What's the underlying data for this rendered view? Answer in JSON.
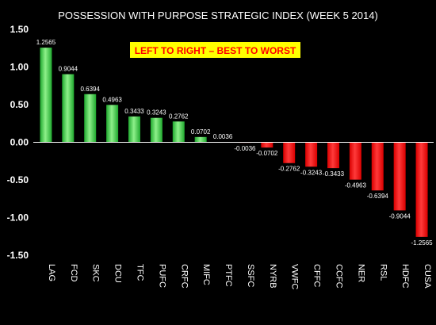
{
  "chart_data": {
    "type": "bar",
    "title": "POSSESSION WITH PURPOSE STRATEGIC INDEX (WEEK 5 2014)",
    "annotation": "LEFT TO RIGHT – BEST TO WORST",
    "xlabel": "",
    "ylabel": "",
    "ylim": [
      -1.5,
      1.5
    ],
    "yticks": [
      "1.50",
      "1.00",
      "0.50",
      "0.00",
      "-0.50",
      "-1.00",
      "-1.50"
    ],
    "categories": [
      "LAG",
      "FCD",
      "SKC",
      "DCU",
      "TFC",
      "PUFC",
      "CRFC",
      "MIFC",
      "PTFC",
      "SSFC",
      "NYRB",
      "VWFC",
      "CFFC",
      "CCFC",
      "NER",
      "RSL",
      "HDFC",
      "CUSA"
    ],
    "values": [
      1.2565,
      0.9044,
      0.6394,
      0.4963,
      0.3433,
      0.3243,
      0.2762,
      0.0702,
      0.0036,
      -0.0036,
      -0.0702,
      -0.2762,
      -0.3243,
      -0.3433,
      -0.4963,
      -0.6394,
      -0.9044,
      -1.2565
    ],
    "value_labels": [
      "1.2565",
      "0.9044",
      "0.6394",
      "0.4963",
      "0.3433",
      "0.3243",
      "0.2762",
      "0.0702",
      "0.0036",
      "-0.0036",
      "-0.0702",
      "-0.2762",
      "-0.3243",
      "-0.3433",
      "-0.4963",
      "-0.6394",
      "-0.9044",
      "-1.2565"
    ],
    "grid": false,
    "legend": "none",
    "colors": {
      "background": "#000000",
      "positive": "#2ecc40",
      "positive_highlight": "#8ef08a",
      "negative": "#ff0000",
      "annotation_bg": "#ffff00",
      "annotation_text": "#ff0000",
      "text": "#ffffff"
    }
  }
}
